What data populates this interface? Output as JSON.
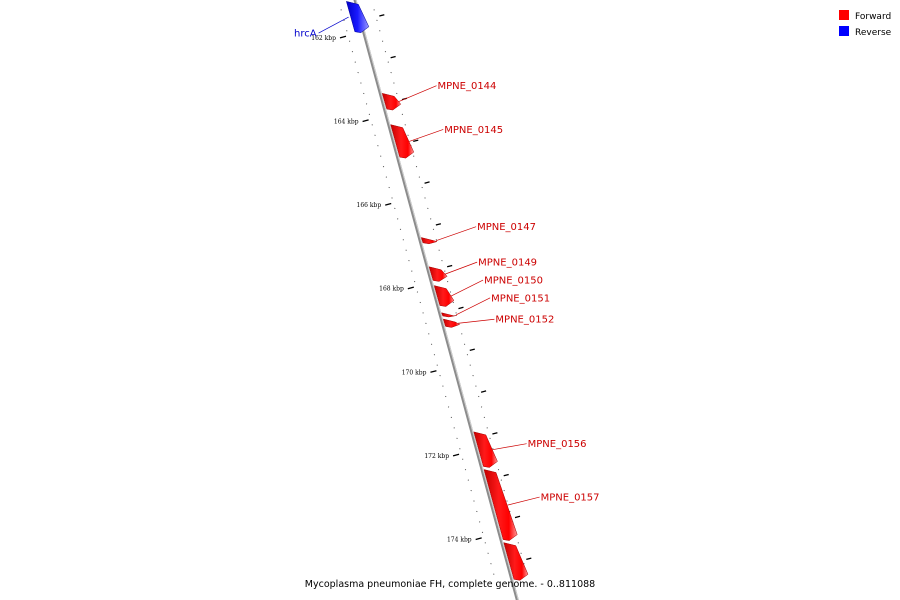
{
  "legend": {
    "items": [
      {
        "label": "Forward",
        "color": "#ff0000"
      },
      {
        "label": "Reverse",
        "color": "#0000ff"
      }
    ]
  },
  "caption": "Mycoplasma pneumoniae FH, complete genome. - 0..811088",
  "axis": {
    "ticks": [
      {
        "kbp": 162,
        "label": "162 kbp"
      },
      {
        "kbp": 164,
        "label": "164 kbp"
      },
      {
        "kbp": 166,
        "label": "166 kbp"
      },
      {
        "kbp": 168,
        "label": "168 kbp"
      },
      {
        "kbp": 170,
        "label": "170 kbp"
      },
      {
        "kbp": 172,
        "label": "172 kbp"
      },
      {
        "kbp": 174,
        "label": "174 kbp"
      }
    ]
  },
  "genes": [
    {
      "name": "hrcA",
      "strand": "reverse",
      "start_kbp": 161.15,
      "end_kbp": 161.9
    },
    {
      "name": "MPNE_0144",
      "strand": "forward",
      "start_kbp": 163.35,
      "end_kbp": 163.75
    },
    {
      "name": "MPNE_0145",
      "strand": "forward",
      "start_kbp": 164.1,
      "end_kbp": 164.9
    },
    {
      "name": "MPNE_0147",
      "strand": "forward",
      "start_kbp": 166.8,
      "end_kbp": 166.95
    },
    {
      "name": "MPNE_0149",
      "strand": "forward",
      "start_kbp": 167.5,
      "end_kbp": 167.85
    },
    {
      "name": "MPNE_0150",
      "strand": "forward",
      "start_kbp": 167.95,
      "end_kbp": 168.45
    },
    {
      "name": "MPNE_0151",
      "strand": "forward",
      "start_kbp": 168.6,
      "end_kbp": 168.7
    },
    {
      "name": "MPNE_0152",
      "strand": "forward",
      "start_kbp": 168.75,
      "end_kbp": 168.95
    },
    {
      "name": "MPNE_0156",
      "strand": "forward",
      "start_kbp": 171.45,
      "end_kbp": 172.3
    },
    {
      "name": "MPNE_0157",
      "strand": "forward",
      "start_kbp": 172.35,
      "end_kbp": 174.05
    },
    {
      "name": "",
      "strand": "forward",
      "start_kbp": 174.1,
      "end_kbp": 175.0
    }
  ]
}
